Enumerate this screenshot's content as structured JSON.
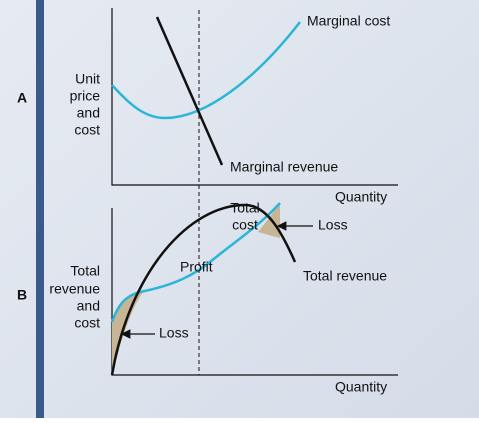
{
  "panel_a": {
    "label": "A",
    "y_axis_label": [
      "Unit",
      "price",
      "and",
      "cost"
    ],
    "x_axis_label": "Quantity",
    "curves": {
      "marginal_cost": "Marginal cost",
      "marginal_revenue": "Marginal revenue"
    }
  },
  "panel_b": {
    "label": "B",
    "y_axis_label": [
      "Total",
      "revenue",
      "and",
      "cost"
    ],
    "x_axis_label": "Quantity",
    "curves": {
      "total_cost": [
        "Total",
        "cost"
      ],
      "total_revenue": "Total revenue"
    },
    "annotations": {
      "profit": "Profit",
      "loss_upper": "Loss",
      "loss_lower": "Loss"
    }
  }
}
